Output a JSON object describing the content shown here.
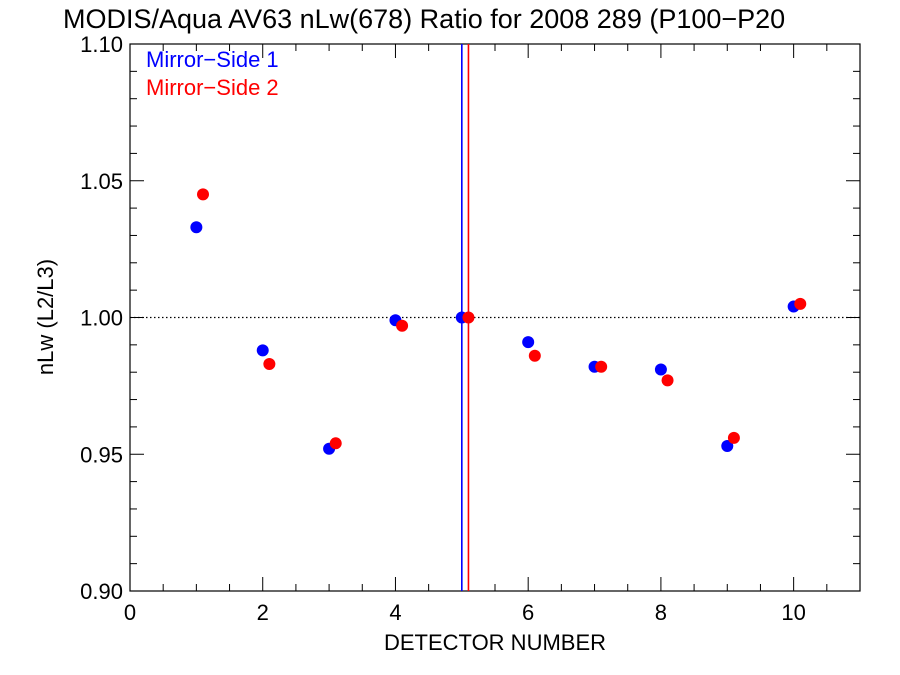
{
  "chart_data": {
    "type": "scatter",
    "title": "MODIS/Aqua AV63 nLw(678) Ratio for 2008 289 (P100−P20",
    "xlabel": "DETECTOR NUMBER",
    "ylabel": "nLw (L2/L3)",
    "xlim": [
      0,
      11
    ],
    "ylim": [
      0.9,
      1.1
    ],
    "x_ticks": [
      0,
      2,
      4,
      6,
      8,
      10
    ],
    "x_tick_labels": [
      "0",
      "2",
      "4",
      "6",
      "8",
      "10"
    ],
    "y_ticks": [
      0.9,
      0.95,
      1.0,
      1.05,
      1.1
    ],
    "y_tick_labels": [
      "0.90",
      "0.95",
      "1.00",
      "1.05",
      "1.10"
    ],
    "legend_position": "top-left",
    "reference_line": {
      "y": 1.0,
      "style": "dotted"
    },
    "series": [
      {
        "name": "Mirror−Side 1",
        "color": "#0000ff",
        "x": [
          1,
          2,
          3,
          4,
          5,
          6,
          7,
          8,
          9,
          10
        ],
        "y": [
          1.033,
          0.988,
          0.952,
          0.999,
          1.0,
          0.991,
          0.982,
          0.981,
          0.953,
          1.004
        ],
        "vline_x": 5.0
      },
      {
        "name": "Mirror−Side 2",
        "color": "#ff0000",
        "x": [
          1.1,
          2.1,
          3.1,
          4.1,
          5.1,
          6.1,
          7.1,
          8.1,
          9.1,
          10.1
        ],
        "y": [
          1.045,
          0.983,
          0.954,
          0.997,
          1.0,
          0.986,
          0.982,
          0.977,
          0.956,
          1.005
        ],
        "vline_x": 5.1
      }
    ]
  }
}
